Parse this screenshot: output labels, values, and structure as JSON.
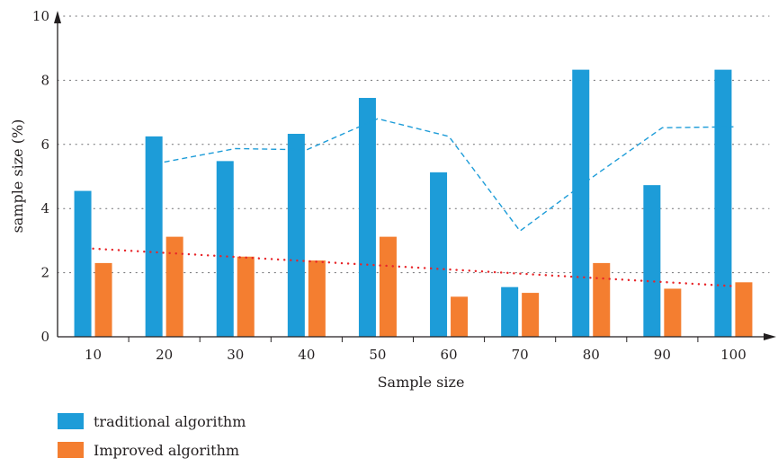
{
  "chart_data": {
    "type": "bar",
    "categories": [
      "10",
      "20",
      "30",
      "40",
      "50",
      "60",
      "70",
      "80",
      "90",
      "100"
    ],
    "series": [
      {
        "name": "traditional algorithm",
        "color": "#1d9cd8",
        "values": [
          4.55,
          6.25,
          5.48,
          6.33,
          7.45,
          5.13,
          1.55,
          8.33,
          4.73,
          8.33
        ]
      },
      {
        "name": "Improved algorithm",
        "color": "#f47e30",
        "values": [
          2.3,
          3.12,
          2.5,
          2.38,
          3.12,
          1.25,
          1.37,
          2.3,
          1.5,
          1.7
        ]
      }
    ],
    "trendlines": [
      {
        "series": "traditional algorithm",
        "style": "dashed",
        "color": "#1d9cd8",
        "values": [
          null,
          5.45,
          5.87,
          5.83,
          6.8,
          6.25,
          3.3,
          4.95,
          6.52,
          6.55
        ]
      },
      {
        "series": "Improved algorithm",
        "style": "dotted",
        "color": "#e8262a",
        "values": [
          2.75,
          2.62,
          2.49,
          2.36,
          2.23,
          2.1,
          1.97,
          1.84,
          1.71,
          1.58
        ]
      }
    ],
    "xlabel": "Sample size",
    "ylabel": "sample size (%)",
    "ylim": [
      0,
      10
    ],
    "yticks": [
      0,
      2,
      4,
      6,
      8,
      10
    ],
    "grid": "horizontal dotted",
    "legend_position": "bottom-left"
  }
}
